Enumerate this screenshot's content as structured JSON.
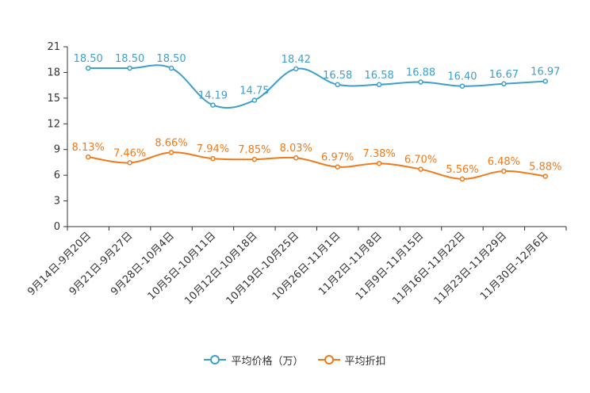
{
  "chart_data": {
    "type": "line",
    "categories": [
      "9月14日-9月20日",
      "9月21日-9月27日",
      "9月28日-10月4日",
      "10月5日-10月11日",
      "10月12日-10月18日",
      "10月19日-10月25日",
      "10月26日-11月1日",
      "11月2日-11月8日",
      "11月9日-11月15日",
      "11月16日-11月22日",
      "11月23日-11月29日",
      "11月30日-12月6日"
    ],
    "series": [
      {
        "name": "平均价格（万）",
        "color": "#3d9fcc",
        "values": [
          18.5,
          18.5,
          18.5,
          14.19,
          14.75,
          18.42,
          16.58,
          16.58,
          16.88,
          16.4,
          16.67,
          16.97
        ],
        "labels": [
          "18.50",
          "18.50",
          "18.50",
          "14.19",
          "14.75",
          "18.42",
          "16.58",
          "16.58",
          "16.88",
          "16.40",
          "16.67",
          "16.97"
        ]
      },
      {
        "name": "平均折扣",
        "color": "#f07a1a",
        "values": [
          8.13,
          7.46,
          8.66,
          7.94,
          7.85,
          8.03,
          6.97,
          7.38,
          6.7,
          5.56,
          6.48,
          5.88
        ],
        "labels": [
          "8.13%",
          "7.46%",
          "8.66%",
          "7.94%",
          "7.85%",
          "8.03%",
          "6.97%",
          "7.38%",
          "6.70%",
          "5.56%",
          "6.48%",
          "5.88%"
        ]
      }
    ],
    "yticks": [
      "0",
      "3",
      "6",
      "9",
      "12",
      "15",
      "18",
      "21"
    ],
    "ylim": [
      0,
      21
    ],
    "title": "",
    "xlabel": "",
    "ylabel": "",
    "legend": "bottom-center"
  }
}
